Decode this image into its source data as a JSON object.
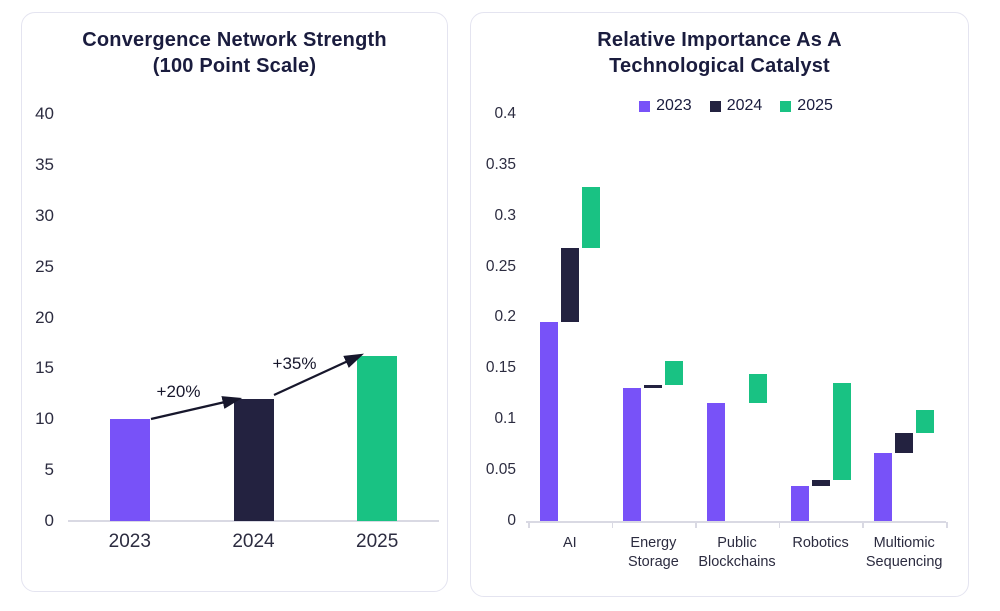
{
  "colors": {
    "background": "#FFFFFF",
    "card_border": "#E4E4F0",
    "title_text": "#1A1C3E",
    "tick_text": "#2C2C40",
    "axis_line": "#D9D9E3",
    "arrow": "#17172C",
    "purple_2023": "#7852F8",
    "navy_2024": "#232240",
    "green_2025": "#19C283"
  },
  "chart_data": [
    {
      "type": "bar",
      "title": "Convergence Network Strength (100 Point Scale)",
      "title_lines": [
        "Convergence Network Strength",
        "(100 Point Scale)"
      ],
      "categories": [
        "2023",
        "2024",
        "2025"
      ],
      "values": [
        10,
        12,
        16.2
      ],
      "bar_colors": [
        "#7852F8",
        "#232240",
        "#19C283"
      ],
      "xlabel": "",
      "ylabel": "",
      "ylim": [
        0,
        40
      ],
      "yticks": [
        "40",
        "35",
        "30",
        "25",
        "20",
        "15",
        "10",
        "5",
        "0"
      ],
      "grid": false,
      "legend_position": "none",
      "annotations": [
        {
          "label": "+20%",
          "from_category": "2023",
          "to_category": "2024"
        },
        {
          "label": "+35%",
          "from_category": "2024",
          "to_category": "2025"
        }
      ]
    },
    {
      "type": "bar",
      "subtype": "grouped-floating-bars-waterfall",
      "title": "Relative Importance As A Technological Catalyst",
      "title_lines": [
        "Relative Importance As A",
        "Technological Catalyst"
      ],
      "legend": [
        {
          "label": "2023",
          "color": "#7852F8"
        },
        {
          "label": "2024",
          "color": "#232240"
        },
        {
          "label": "2025",
          "color": "#19C283"
        }
      ],
      "legend_position": "top-center",
      "categories": [
        "AI",
        "Energy Storage",
        "Public Blockchains",
        "Robotics",
        "Multiomic Sequencing"
      ],
      "category_label_lines": [
        [
          "AI"
        ],
        [
          "Energy",
          "Storage"
        ],
        [
          "Public",
          "Blockchains"
        ],
        [
          "Robotics"
        ],
        [
          "Multiomic",
          "Sequencing"
        ]
      ],
      "xlabel": "",
      "ylabel": "",
      "ylim": [
        0,
        0.4
      ],
      "yticks": [
        "0.4",
        "0.35",
        "0.3",
        "0.25",
        "0.2",
        "0.15",
        "0.1",
        "0.05",
        "0"
      ],
      "grid": false,
      "series": [
        {
          "name": "2023",
          "color": "#7852F8",
          "values": [
            0.195,
            0.131,
            0.116,
            0.034,
            0.067
          ],
          "ranges": [
            [
              0,
              0.195
            ],
            [
              0,
              0.131
            ],
            [
              0,
              0.116
            ],
            [
              0,
              0.034
            ],
            [
              0,
              0.067
            ]
          ]
        },
        {
          "name": "2024",
          "color": "#232240",
          "values": [
            0.268,
            0.134,
            0.116,
            0.04,
            0.086
          ],
          "ranges": [
            [
              0.195,
              0.268
            ],
            [
              0.131,
              0.134
            ],
            [
              0.116,
              0.116
            ],
            [
              0.034,
              0.04
            ],
            [
              0.067,
              0.086
            ]
          ]
        },
        {
          "name": "2025",
          "color": "#19C283",
          "values": [
            0.328,
            0.157,
            0.144,
            0.136,
            0.109
          ],
          "ranges": [
            [
              0.268,
              0.328
            ],
            [
              0.134,
              0.157
            ],
            [
              0.116,
              0.144
            ],
            [
              0.04,
              0.136
            ],
            [
              0.086,
              0.109
            ]
          ]
        }
      ]
    }
  ]
}
